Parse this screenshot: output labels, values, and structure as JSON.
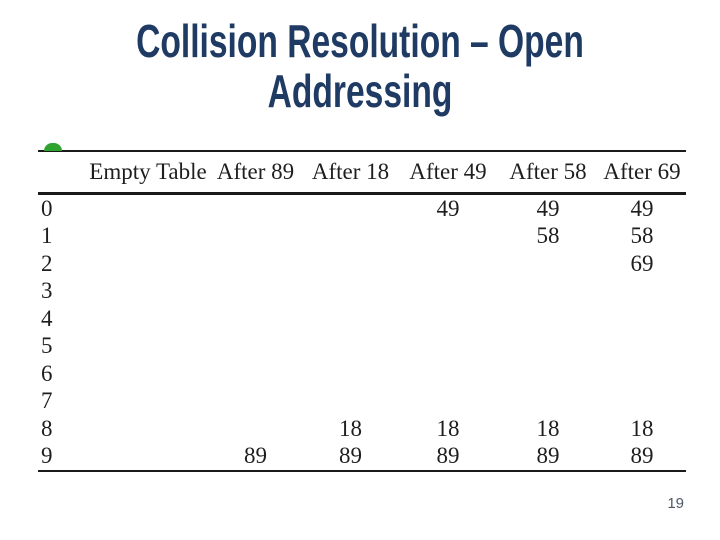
{
  "slide": {
    "title": {
      "line1": "Collision Resolution – Open",
      "line2": "Addressing"
    },
    "page_number": "19"
  },
  "figure": {
    "table": {
      "headers": [
        "Empty Table",
        "After 89",
        "After 18",
        "After 49",
        "After 58",
        "After 69"
      ],
      "rows": [
        {
          "index": "0",
          "cells": [
            "",
            "",
            "",
            "49",
            "49",
            "49"
          ]
        },
        {
          "index": "1",
          "cells": [
            "",
            "",
            "",
            "",
            "58",
            "58"
          ]
        },
        {
          "index": "2",
          "cells": [
            "",
            "",
            "",
            "",
            "",
            "69"
          ]
        },
        {
          "index": "3",
          "cells": [
            "",
            "",
            "",
            "",
            "",
            ""
          ]
        },
        {
          "index": "4",
          "cells": [
            "",
            "",
            "",
            "",
            "",
            ""
          ]
        },
        {
          "index": "5",
          "cells": [
            "",
            "",
            "",
            "",
            "",
            ""
          ]
        },
        {
          "index": "6",
          "cells": [
            "",
            "",
            "",
            "",
            "",
            ""
          ]
        },
        {
          "index": "7",
          "cells": [
            "",
            "",
            "",
            "",
            "",
            ""
          ]
        },
        {
          "index": "8",
          "cells": [
            "",
            "",
            "18",
            "18",
            "18",
            "18"
          ]
        },
        {
          "index": "9",
          "cells": [
            "",
            "89",
            "89",
            "89",
            "89",
            "89"
          ]
        }
      ]
    }
  },
  "colors": {
    "title_navy": "#1f3b63",
    "table_text": "#1e1e1e",
    "table_lines": "#1a1a1a",
    "bullet_green": "#2ea32e",
    "page_number_gray": "#4d5766",
    "background": "#ffffff"
  }
}
